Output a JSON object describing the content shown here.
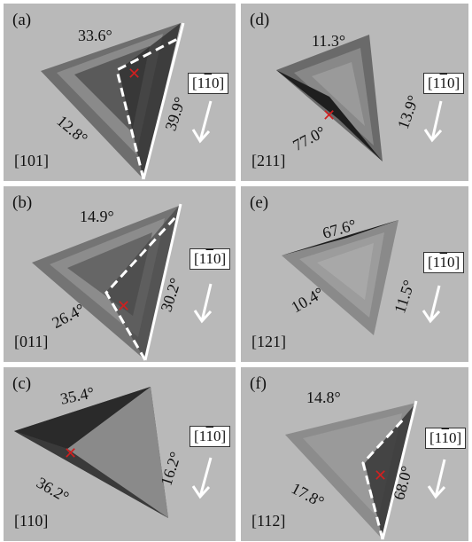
{
  "panels": [
    {
      "label": "(a)",
      "direction": "[101]",
      "angles": [
        "33.6°",
        "12.8°",
        "39.9°"
      ],
      "box": {
        "pre": "[1",
        "bar": "1",
        "post": "0]"
      }
    },
    {
      "label": "(d)",
      "direction": "[211]",
      "angles": [
        "11.3°",
        "77.0°",
        "13.9°"
      ],
      "box": {
        "pre": "[1",
        "bar": "1",
        "post": "0]"
      }
    },
    {
      "label": "(b)",
      "direction": "[011]",
      "angles": [
        "14.9°",
        "26.4°",
        "30.2°"
      ],
      "box": {
        "pre": "[1",
        "bar": "1",
        "post": "0]"
      }
    },
    {
      "label": "(e)",
      "direction": "[121]",
      "angles": [
        "67.6°",
        "10.4°",
        "11.5°"
      ],
      "box": {
        "pre": "[1",
        "bar": "1",
        "post": "0]"
      }
    },
    {
      "label": "(c)",
      "direction": "[110]",
      "angles": [
        "35.4°",
        "36.2°",
        "16.2°"
      ],
      "box": {
        "pre": "[1",
        "bar": "1",
        "post": "0]"
      }
    },
    {
      "label": "(f)",
      "direction": "[112]",
      "angles": [
        "14.8°",
        "17.8°",
        "68.0°"
      ],
      "box": {
        "pre": "[1",
        "bar": "1",
        "post": "0]"
      }
    }
  ]
}
